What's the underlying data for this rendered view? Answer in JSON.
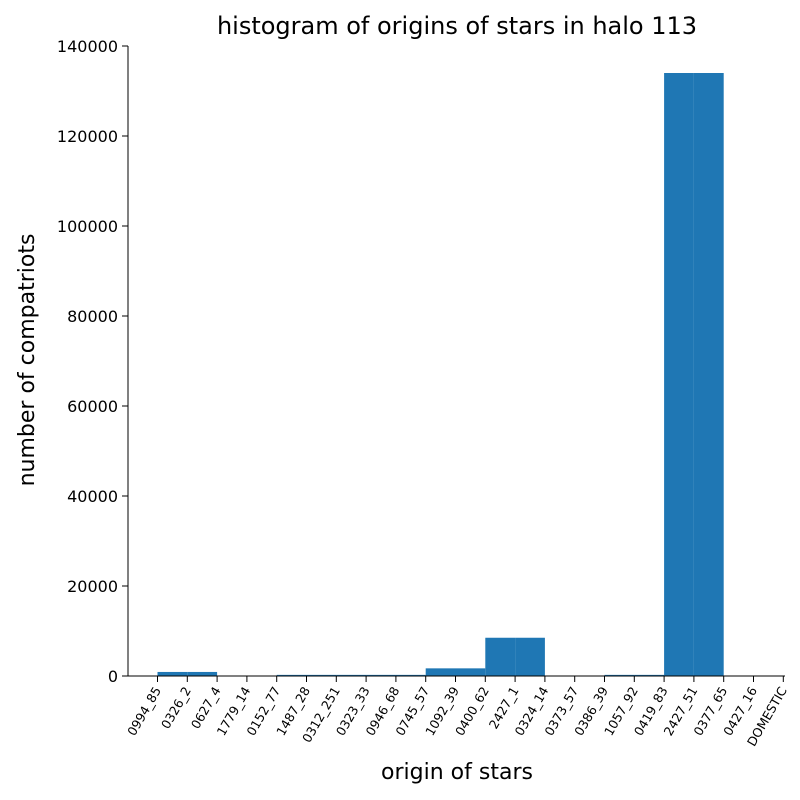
{
  "chart_data": {
    "type": "bar",
    "title": "histogram of origins of stars in halo 113",
    "xlabel": "origin of stars",
    "ylabel": "number of compatriots",
    "ylim": [
      0,
      140000
    ],
    "yticks": [
      0,
      20000,
      40000,
      60000,
      80000,
      100000,
      120000,
      140000
    ],
    "categories": [
      "0994_85",
      "0326_2",
      "0627_4",
      "1779_14",
      "0152_77",
      "1487_28",
      "0312_251",
      "0323_33",
      "0946_68",
      "0745_57",
      "1092_39",
      "0400_62",
      "2427_1",
      "0324_14",
      "0373_57",
      "0386_39",
      "1057_92",
      "0419_83",
      "2427_51",
      "0377_65",
      "0427_16",
      "DOMESTIC"
    ],
    "bars": [
      {
        "from": "0994_85",
        "to": "0326_2",
        "value": 900
      },
      {
        "from": "0326_2",
        "to": "0627_4",
        "value": 900
      },
      {
        "from": "0627_4",
        "to": "1779_14",
        "value": 0
      },
      {
        "from": "1779_14",
        "to": "0152_77",
        "value": 0
      },
      {
        "from": "0152_77",
        "to": "1487_28",
        "value": 250
      },
      {
        "from": "1487_28",
        "to": "0312_251",
        "value": 250
      },
      {
        "from": "0312_251",
        "to": "0323_33",
        "value": 250
      },
      {
        "from": "0323_33",
        "to": "0946_68",
        "value": 250
      },
      {
        "from": "0946_68",
        "to": "0745_57",
        "value": 250
      },
      {
        "from": "0745_57",
        "to": "1092_39",
        "value": 1700
      },
      {
        "from": "1092_39",
        "to": "0400_62",
        "value": 1700
      },
      {
        "from": "0400_62",
        "to": "2427_1",
        "value": 8500
      },
      {
        "from": "2427_1",
        "to": "0324_14",
        "value": 8500
      },
      {
        "from": "0324_14",
        "to": "0373_57",
        "value": 0
      },
      {
        "from": "0373_57",
        "to": "0386_39",
        "value": 0
      },
      {
        "from": "0386_39",
        "to": "1057_92",
        "value": 250
      },
      {
        "from": "1057_92",
        "to": "0419_83",
        "value": 250
      },
      {
        "from": "0419_83",
        "to": "2427_51",
        "value": 134000
      },
      {
        "from": "2427_51",
        "to": "0377_65",
        "value": 134000
      },
      {
        "from": "0377_65",
        "to": "0427_16",
        "value": 0
      },
      {
        "from": "0427_16",
        "to": "DOMESTIC",
        "value": 0
      }
    ],
    "grid": false,
    "colors": {
      "bar": "#1f77b4"
    }
  }
}
